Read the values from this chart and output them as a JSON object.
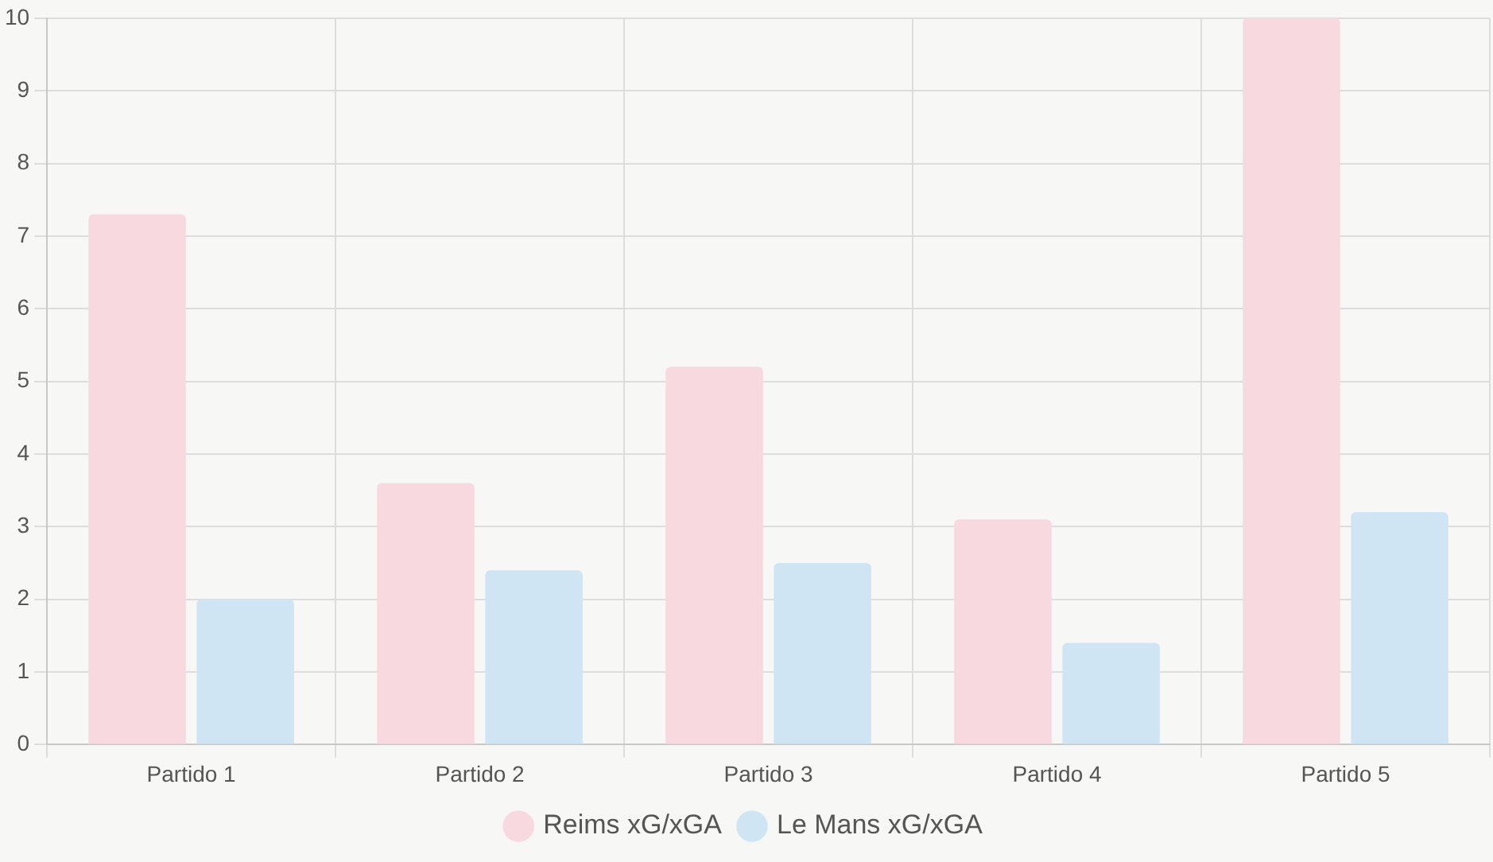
{
  "chart_data": {
    "type": "bar",
    "categories": [
      "Partido 1",
      "Partido 2",
      "Partido 3",
      "Partido 4",
      "Partido 5"
    ],
    "series": [
      {
        "name": "Reims xG/xGA",
        "color": "#f8d9e0",
        "values": [
          7.3,
          3.6,
          5.2,
          3.1,
          10.0
        ]
      },
      {
        "name": "Le Mans xG/xGA",
        "color": "#d0e5f4",
        "values": [
          2.0,
          2.4,
          2.5,
          1.4,
          3.2
        ]
      }
    ],
    "ylim": [
      0,
      10
    ],
    "yticks": [
      0,
      1,
      2,
      3,
      4,
      5,
      6,
      7,
      8,
      9,
      10
    ],
    "grid": true,
    "legend": "bottom"
  }
}
